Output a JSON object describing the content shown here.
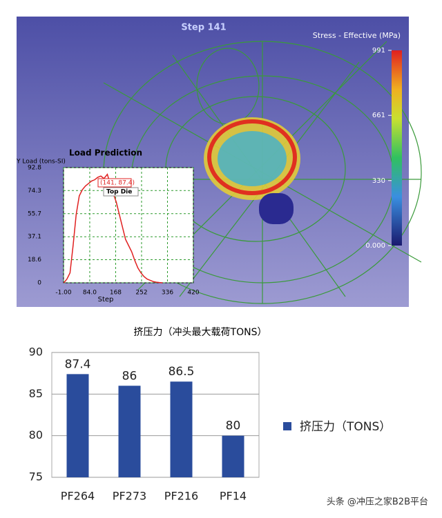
{
  "simulation": {
    "step_label": "Step  141",
    "colorbar": {
      "title": "Stress - Effective (MPa)",
      "lim": [
        0,
        991
      ],
      "ticks": [
        {
          "value": 0,
          "label": "0.000"
        },
        330,
        661,
        991
      ]
    }
  },
  "chart_data": [
    {
      "type": "line",
      "title": "Load Prediction",
      "y_label": "Y Load (tons-SI)",
      "x_label": "Step",
      "annotation": "(141, 87.4)",
      "x": [
        0,
        10,
        20,
        30,
        40,
        50,
        60,
        70,
        80,
        90,
        100,
        110,
        120,
        130,
        141,
        150,
        160,
        170,
        180,
        190,
        200,
        210,
        220,
        230,
        240,
        250,
        260,
        270,
        280,
        290,
        300,
        310,
        320
      ],
      "series": [
        {
          "name": "Top Die",
          "color": "#e02020",
          "values": [
            0,
            3,
            8,
            30,
            55,
            70,
            75,
            78,
            80,
            82,
            83,
            85,
            86,
            84,
            87.4,
            80,
            72,
            65,
            55,
            45,
            35,
            30,
            25,
            18,
            12,
            8,
            5,
            3,
            2,
            1,
            0.5,
            0.2,
            0
          ]
        }
      ],
      "xlim": [
        -1,
        420
      ],
      "xticks": [
        {
          "value": -1,
          "label": "-1.00"
        },
        {
          "value": 84,
          "label": "84.0"
        },
        168,
        252,
        336,
        420
      ],
      "ylim": [
        0,
        92.8
      ],
      "yticks": [
        0,
        18.6,
        37.1,
        55.7,
        74.3,
        92.8
      ],
      "grid": true
    },
    {
      "type": "bar",
      "title": "挤压力（冲头最大载荷TONS）",
      "categories": [
        "PF264",
        "PF273",
        "PF216",
        "PF14"
      ],
      "series": [
        {
          "name": "挤压力（TONS）",
          "color": "#2a4c9c",
          "values": [
            87.4,
            86,
            86.5,
            80
          ]
        }
      ],
      "ylim": [
        75,
        90
      ],
      "yticks": [
        75,
        80,
        85,
        90
      ],
      "grid": true,
      "legend": "right"
    }
  ],
  "watermark": "头条 @冲压之家B2B平台"
}
